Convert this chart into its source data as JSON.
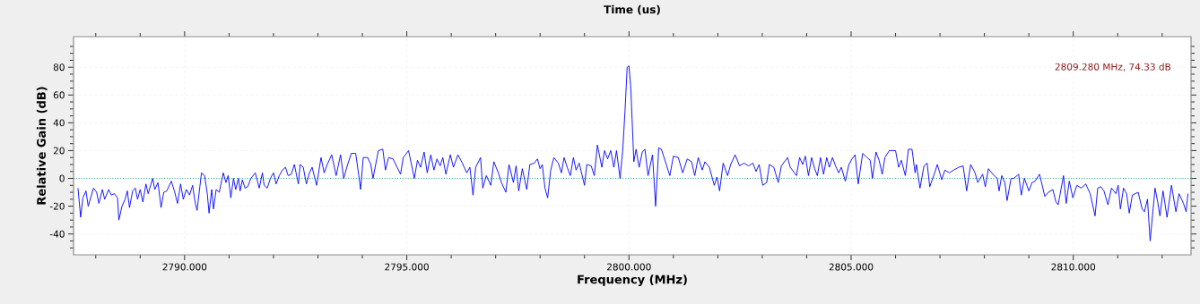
{
  "chart_data": {
    "type": "line",
    "title": "Time (us)",
    "xlabel": "Frequency (MHz)",
    "ylabel": "Relative Gain (dB)",
    "xlim": [
      2787.5,
      2812.65
    ],
    "ylim": [
      -55,
      102
    ],
    "xticks": [
      {
        "value": 2788,
        "label": null
      },
      {
        "value": 2789,
        "label": null
      },
      {
        "value": 2790,
        "label": "2790.000"
      },
      {
        "value": 2791,
        "label": null
      },
      {
        "value": 2792,
        "label": null
      },
      {
        "value": 2793,
        "label": null
      },
      {
        "value": 2794,
        "label": null
      },
      {
        "value": 2795,
        "label": "2795.000"
      },
      {
        "value": 2796,
        "label": null
      },
      {
        "value": 2797,
        "label": null
      },
      {
        "value": 2798,
        "label": null
      },
      {
        "value": 2799,
        "label": null
      },
      {
        "value": 2800,
        "label": "2800.000"
      },
      {
        "value": 2801,
        "label": null
      },
      {
        "value": 2802,
        "label": null
      },
      {
        "value": 2803,
        "label": null
      },
      {
        "value": 2804,
        "label": null
      },
      {
        "value": 2805,
        "label": "2805.000"
      },
      {
        "value": 2806,
        "label": null
      },
      {
        "value": 2807,
        "label": null
      },
      {
        "value": 2808,
        "label": null
      },
      {
        "value": 2809,
        "label": null
      },
      {
        "value": 2810,
        "label": "2810.000"
      },
      {
        "value": 2811,
        "label": null
      },
      {
        "value": 2812,
        "label": null
      }
    ],
    "yticks": [
      {
        "value": -50,
        "label": null
      },
      {
        "value": -45,
        "label": null
      },
      -40,
      {
        "value": -35,
        "label": null
      },
      {
        "value": -30,
        "label": null
      },
      {
        "value": -25,
        "label": null
      },
      -20,
      {
        "value": -15,
        "label": null
      },
      {
        "value": -10,
        "label": null
      },
      {
        "value": -5,
        "label": null
      },
      0,
      {
        "value": 5,
        "label": null
      },
      {
        "value": 10,
        "label": null
      },
      {
        "value": 15,
        "label": null
      },
      20,
      {
        "value": 25,
        "label": null
      },
      {
        "value": 30,
        "label": null
      },
      {
        "value": 35,
        "label": null
      },
      40,
      {
        "value": 45,
        "label": null
      },
      {
        "value": 50,
        "label": null
      },
      {
        "value": 55,
        "label": null
      },
      60,
      {
        "value": 65,
        "label": null
      },
      {
        "value": 70,
        "label": null
      },
      {
        "value": 75,
        "label": null
      },
      80,
      {
        "value": 85,
        "label": null
      },
      {
        "value": 90,
        "label": null
      },
      {
        "value": 95,
        "label": null
      }
    ],
    "grid": true,
    "ref_lines": [
      {
        "axis": "y",
        "value": 0,
        "color": "#008b8b",
        "line_style": "dotted"
      }
    ],
    "annotations": [
      "2809.280 MHz, 74.33 dB"
    ],
    "series": [
      {
        "color": "#0000ff",
        "x": [
          2787.6,
          2787.66,
          2787.71,
          2787.78,
          2787.83,
          2787.95,
          2788.02,
          2788.07,
          2788.15,
          2788.2,
          2788.29,
          2788.35,
          2788.42,
          2788.49,
          2788.52,
          2788.59,
          2788.66,
          2788.71,
          2788.76,
          2788.83,
          2788.89,
          2788.94,
          2789.0,
          2789.06,
          2789.13,
          2789.18,
          2789.28,
          2789.33,
          2789.4,
          2789.47,
          2789.53,
          2789.6,
          2789.7,
          2789.77,
          2789.84,
          2789.91,
          2789.97,
          2790.04,
          2790.11,
          2790.18,
          2790.24,
          2790.28,
          2790.38,
          2790.45,
          2790.51,
          2790.55,
          2790.61,
          2790.65,
          2790.71,
          2790.78,
          2790.87,
          2790.93,
          2790.98,
          2791.04,
          2791.1,
          2791.15,
          2791.21,
          2791.25,
          2791.3,
          2791.36,
          2791.42,
          2791.49,
          2791.59,
          2791.68,
          2791.75,
          2791.79,
          2791.86,
          2791.93,
          2792.0,
          2792.06,
          2792.13,
          2792.2,
          2792.27,
          2792.33,
          2792.4,
          2792.47,
          2792.56,
          2792.6,
          2792.67,
          2792.74,
          2792.81,
          2792.87,
          2792.97,
          2793.07,
          2793.14,
          2793.21,
          2793.31,
          2793.41,
          2793.51,
          2793.58,
          2793.65,
          2793.75,
          2793.85,
          2793.92,
          2793.96,
          2794.02,
          2794.12,
          2794.19,
          2794.24,
          2794.36,
          2794.46,
          2794.52,
          2794.59,
          2794.69,
          2794.86,
          2794.92,
          2795.04,
          2795.17,
          2795.24,
          2795.31,
          2795.39,
          2795.46,
          2795.54,
          2795.61,
          2795.68,
          2795.75,
          2795.81,
          2795.88,
          2795.98,
          2796.05,
          2796.15,
          2796.25,
          2796.35,
          2796.42,
          2796.49,
          2796.55,
          2796.66,
          2796.71,
          2796.79,
          2796.89,
          2796.96,
          2797.06,
          2797.13,
          2797.23,
          2797.3,
          2797.4,
          2797.46,
          2797.52,
          2797.6,
          2797.7,
          2797.77,
          2797.87,
          2797.94,
          2798.0,
          2798.05,
          2798.11,
          2798.17,
          2798.24,
          2798.31,
          2798.41,
          2798.48,
          2798.54,
          2798.61,
          2798.68,
          2798.75,
          2798.81,
          2798.88,
          2799.0,
          2799.05,
          2799.15,
          2799.22,
          2799.29,
          2799.39,
          2799.45,
          2799.52,
          2799.59,
          2799.66,
          2799.72,
          2799.8,
          2799.86,
          2799.91,
          2799.96,
          2800.0,
          2800.04,
          2800.07,
          2800.11,
          2800.16,
          2800.23,
          2800.3,
          2800.36,
          2800.43,
          2800.53,
          2800.6,
          2800.67,
          2800.73,
          2800.84,
          2800.92,
          2801.0,
          2801.11,
          2801.21,
          2801.31,
          2801.41,
          2801.48,
          2801.56,
          2801.65,
          2801.71,
          2801.81,
          2801.92,
          2801.98,
          2802.04,
          2802.12,
          2802.22,
          2802.29,
          2802.39,
          2802.49,
          2802.59,
          2802.69,
          2802.79,
          2802.86,
          2802.93,
          2803.01,
          2803.1,
          2803.16,
          2803.26,
          2803.36,
          2803.43,
          2803.57,
          2803.63,
          2803.77,
          2803.84,
          2803.91,
          2803.97,
          2804.04,
          2804.11,
          2804.18,
          2804.24,
          2804.31,
          2804.38,
          2804.45,
          2804.51,
          2804.58,
          2804.65,
          2804.72,
          2804.78,
          2804.87,
          2804.95,
          2805.02,
          2805.09,
          2805.16,
          2805.26,
          2805.36,
          2805.43,
          2805.48,
          2805.56,
          2805.63,
          2805.7,
          2805.76,
          2805.86,
          2806.0,
          2806.07,
          2806.13,
          2806.22,
          2806.29,
          2806.37,
          2806.44,
          2806.47,
          2806.55,
          2806.64,
          2806.71,
          2806.77,
          2806.88,
          2806.94,
          2807.04,
          2807.11,
          2807.21,
          2807.31,
          2807.42,
          2807.52,
          2807.6,
          2807.69,
          2807.79,
          2807.85,
          2807.96,
          2808.02,
          2808.09,
          2808.19,
          2808.29,
          2808.33,
          2808.39,
          2808.46,
          2808.51,
          2808.6,
          2808.66,
          2808.77,
          2808.83,
          2808.9,
          2809.0,
          2809.07,
          2809.14,
          2809.24,
          2809.36,
          2809.44,
          2809.54,
          2809.61,
          2809.66,
          2809.78,
          2809.84,
          2809.91,
          2809.99,
          2810.08,
          2810.18,
          2810.28,
          2810.38,
          2810.49,
          2810.55,
          2810.62,
          2810.69,
          2810.78,
          2810.86,
          2810.96,
          2811.01,
          2811.06,
          2811.13,
          2811.2,
          2811.26,
          2811.33,
          2811.46,
          2811.55,
          2811.6,
          2811.67,
          2811.73,
          2811.84,
          2811.9,
          2811.95,
          2812.02,
          2812.11,
          2812.21,
          2812.31,
          2812.38,
          2812.48,
          2812.54,
          2812.58
        ],
        "values": [
          -7,
          -28,
          -14,
          -9,
          -20,
          -7,
          -10,
          -18,
          -8,
          -15,
          -8,
          -12,
          -11,
          -14,
          -30,
          -20,
          -15,
          -9,
          -21,
          -9,
          -7,
          -15,
          -8,
          -17,
          -4,
          -11,
          0,
          -8,
          -3,
          -21,
          -10,
          -9,
          -2,
          -9,
          -18,
          -4,
          -15,
          -8,
          -12,
          -5,
          -18,
          -23,
          4,
          2,
          -11,
          -25,
          -8,
          -22,
          -8,
          -10,
          4,
          -3,
          2,
          -14,
          0,
          -8,
          0,
          -9,
          -1,
          -7,
          -6,
          0,
          4,
          -7,
          4,
          -5,
          -7,
          0,
          4,
          -4,
          2,
          6,
          8,
          2,
          3,
          10,
          -4,
          10,
          8,
          -4,
          4,
          8,
          -5,
          15,
          4,
          10,
          17,
          2,
          17,
          0,
          8,
          18,
          18,
          2,
          -8,
          15,
          15,
          10,
          0,
          20,
          21,
          6,
          15,
          14,
          3,
          15,
          20,
          0,
          13,
          8,
          19,
          4,
          17,
          6,
          14,
          9,
          15,
          3,
          17,
          8,
          17,
          11,
          4,
          8,
          -12,
          8,
          15,
          -7,
          2,
          -5,
          12,
          4,
          -3,
          -10,
          10,
          -3,
          9,
          -9,
          7,
          -8,
          10,
          11,
          14,
          7,
          10,
          -7,
          -14,
          6,
          15,
          11,
          4,
          15,
          8,
          2,
          15,
          6,
          11,
          -5,
          10,
          9,
          2,
          24,
          8,
          20,
          14,
          20,
          8,
          20,
          0,
          20,
          48,
          80,
          81,
          66,
          43,
          12,
          21,
          8,
          19,
          21,
          2,
          17,
          -20,
          22,
          21,
          10,
          2,
          16,
          15,
          4,
          14,
          12,
          2,
          15,
          6,
          12,
          8,
          -5,
          1,
          -9,
          11,
          2,
          10,
          17,
          9,
          11,
          9,
          11,
          5,
          10,
          -5,
          -3,
          10,
          8,
          -3,
          9,
          15,
          8,
          2,
          15,
          10,
          16,
          2,
          15,
          7,
          2,
          15,
          3,
          15,
          8,
          15,
          9,
          4,
          8,
          -2,
          10,
          14,
          17,
          -4,
          18,
          15,
          13,
          0,
          19,
          13,
          3,
          15,
          20,
          20,
          8,
          13,
          2,
          21,
          21,
          4,
          10,
          -7,
          9,
          11,
          -6,
          4,
          10,
          -1,
          6,
          4,
          6,
          8,
          9,
          -9,
          10,
          4,
          -3,
          3,
          -6,
          7,
          3,
          0,
          -9,
          2,
          -3,
          -16,
          0,
          0,
          3,
          -12,
          0,
          -9,
          -3,
          -2,
          3,
          -13,
          -10,
          -8,
          -17,
          -19,
          2,
          -18,
          -2,
          -14,
          -5,
          -7,
          -4,
          -11,
          -27,
          -7,
          -6,
          -9,
          -19,
          -7,
          -11,
          -5,
          -22,
          -7,
          -11,
          -25,
          -12,
          -10,
          -22,
          -24,
          -15,
          -45,
          -7,
          -17,
          -27,
          -9,
          -28,
          -5,
          -24,
          -11,
          -18,
          -24,
          -11
        ]
      }
    ]
  }
}
